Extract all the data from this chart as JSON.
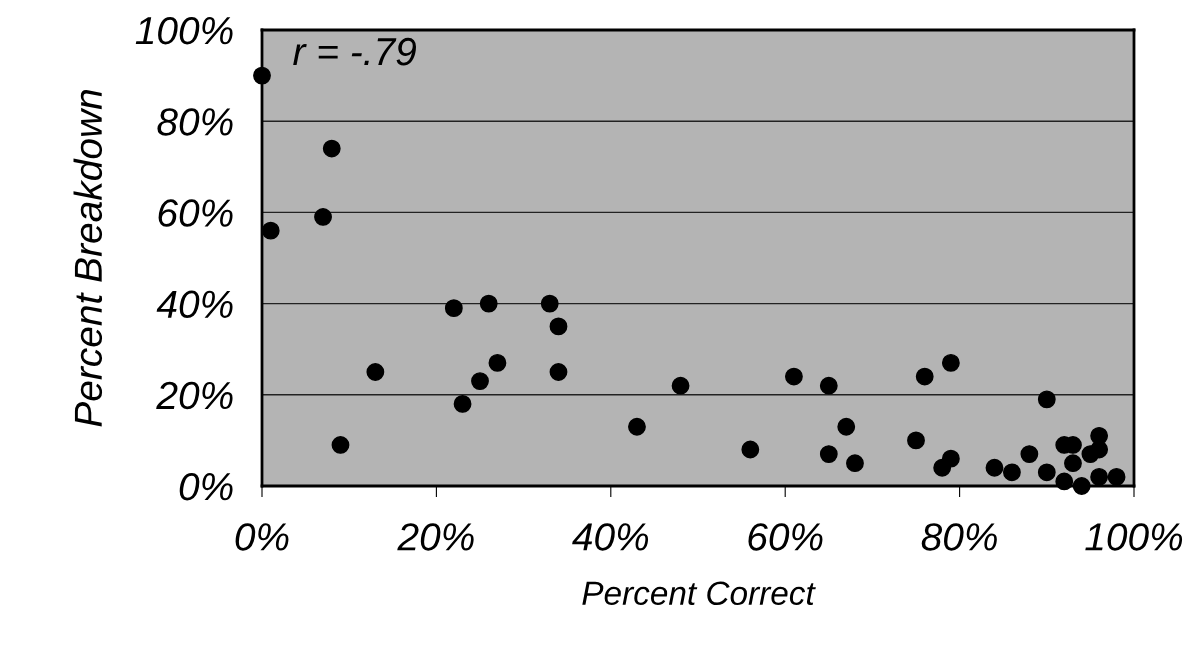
{
  "chart_data": {
    "type": "scatter",
    "xlabel": "Percent Correct",
    "ylabel": "Percent Breakdown",
    "annotations": [
      "r = -.79"
    ],
    "x": [
      0,
      8,
      7,
      1,
      13,
      9,
      22,
      26,
      33,
      34,
      27,
      25,
      34,
      23,
      48,
      43,
      61,
      65,
      56,
      67,
      65,
      68,
      76,
      79,
      75,
      79,
      78,
      90,
      84,
      86,
      88,
      90,
      92,
      93,
      93,
      95,
      96,
      96,
      92,
      94,
      96,
      98
    ],
    "series": [
      {
        "color": "#000000",
        "values": [
          90,
          74,
          59,
          56,
          25,
          9,
          39,
          40,
          40,
          35,
          27,
          23,
          25,
          18,
          22,
          13,
          24,
          22,
          8,
          13,
          7,
          5,
          24,
          27,
          10,
          6,
          4,
          19,
          4,
          3,
          7,
          3,
          9,
          9,
          5,
          7,
          11,
          8,
          1,
          0,
          2,
          2
        ]
      }
    ],
    "xlim": [
      0,
      100
    ],
    "ylim": [
      0,
      100
    ],
    "xticks": [
      {
        "value": 0,
        "label": "0%"
      },
      {
        "value": 20,
        "label": "20%"
      },
      {
        "value": 40,
        "label": "40%"
      },
      {
        "value": 60,
        "label": "60%"
      },
      {
        "value": 80,
        "label": "80%"
      },
      {
        "value": 100,
        "label": "100%"
      }
    ],
    "yticks": [
      {
        "value": 0,
        "label": "0%"
      },
      {
        "value": 20,
        "label": "20%"
      },
      {
        "value": 40,
        "label": "40%"
      },
      {
        "value": 60,
        "label": "60%"
      },
      {
        "value": 80,
        "label": "80%"
      },
      {
        "value": 100,
        "label": "100%"
      }
    ],
    "grid": "y",
    "marker": "circle"
  }
}
